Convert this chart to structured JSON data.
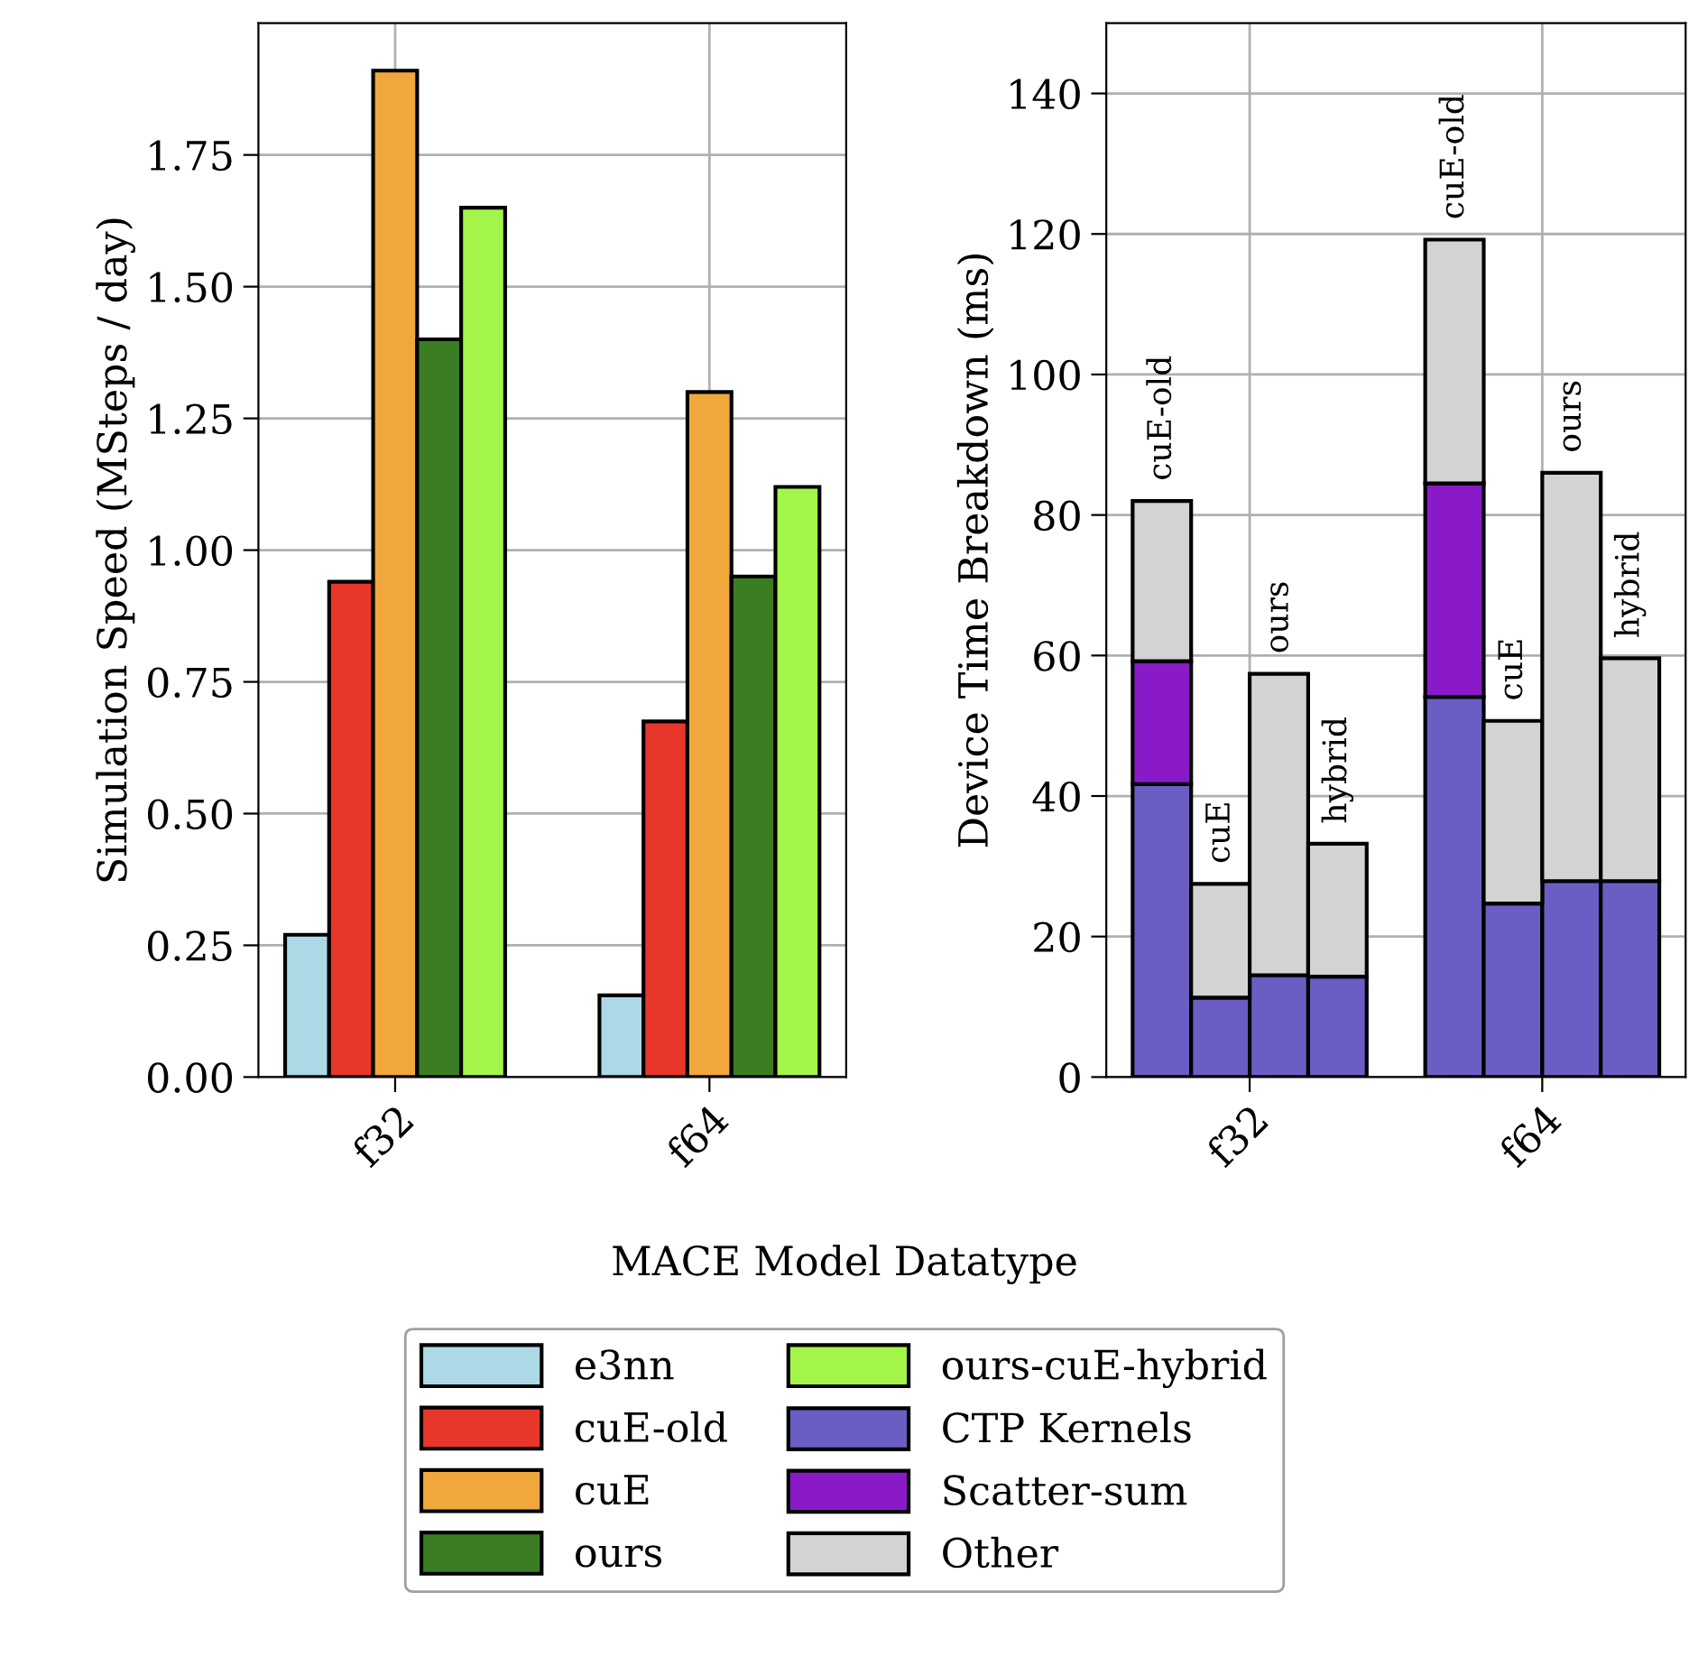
{
  "chart_data": [
    {
      "type": "bar",
      "ylabel": "Simulation Speed (MSteps / day)",
      "xlabel": "MACE Model Datatype",
      "categories": [
        "f32",
        "f64"
      ],
      "ylim": [
        0,
        2.0
      ],
      "yticks": [
        {
          "value": 0,
          "label": "0.00"
        },
        0.25,
        {
          "value": 0.5,
          "label": "0.50"
        },
        0.75,
        {
          "value": 1,
          "label": "1.00"
        },
        1.25,
        {
          "value": 1.5,
          "label": "1.50"
        },
        1.75
      ],
      "grid": true,
      "legend": "bottom",
      "series": [
        {
          "name": "e3nn",
          "color": "#add8e6",
          "values": [
            0.27,
            0.155
          ]
        },
        {
          "name": "cuE-old",
          "color": "#e8362a",
          "values": [
            0.94,
            0.675
          ]
        },
        {
          "name": "cuE",
          "color": "#f0a83c",
          "values": [
            1.91,
            1.3
          ]
        },
        {
          "name": "ours",
          "color": "#3a7d22",
          "values": [
            1.4,
            0.95
          ]
        },
        {
          "name": "ours-cuE-hybrid",
          "color": "#a3f54a",
          "values": [
            1.65,
            1.12
          ]
        }
      ]
    },
    {
      "type": "bar",
      "ylabel": "Device Time Breakdown (ms)",
      "stacked": true,
      "ylim": [
        0,
        150
      ],
      "yticks": [
        0,
        20,
        40,
        60,
        80,
        100,
        120,
        140
      ],
      "grid": true,
      "legend": "bottom",
      "categories": [
        null,
        null,
        null,
        null,
        null,
        null,
        null,
        null,
        null
      ],
      "series": [
        {
          "name": "CTP Kernels",
          "color": "#6a5ec4",
          "values": [
            41.7,
            11.3,
            14.5,
            14.3,
            null,
            54.1,
            24.7,
            27.9,
            27.9
          ]
        },
        {
          "name": "Scatter-sum",
          "color": "#8a1ac8",
          "values": [
            17.5,
            null,
            null,
            null,
            null,
            30.4,
            null,
            null,
            null
          ]
        },
        {
          "name": "Other",
          "color": "#d3d3d3",
          "values": [
            22.8,
            16.2,
            42.9,
            18.9,
            null,
            34.7,
            26.0,
            58.1,
            31.7
          ]
        }
      ],
      "annotations": [
        "f32",
        "f64",
        {
          "text": "cuE-old",
          "y": 82.0
        },
        {
          "text": "cuE",
          "y": 27.5
        },
        {
          "text": "ours",
          "y": 57.4
        },
        {
          "text": "hybrid",
          "y": 33.2
        },
        {
          "text": "cuE-old",
          "y": 119.2
        },
        {
          "text": "cuE",
          "y": 50.7
        },
        {
          "text": "ours",
          "y": 86.0
        },
        {
          "text": "hybrid",
          "y": 59.6
        }
      ]
    }
  ]
}
